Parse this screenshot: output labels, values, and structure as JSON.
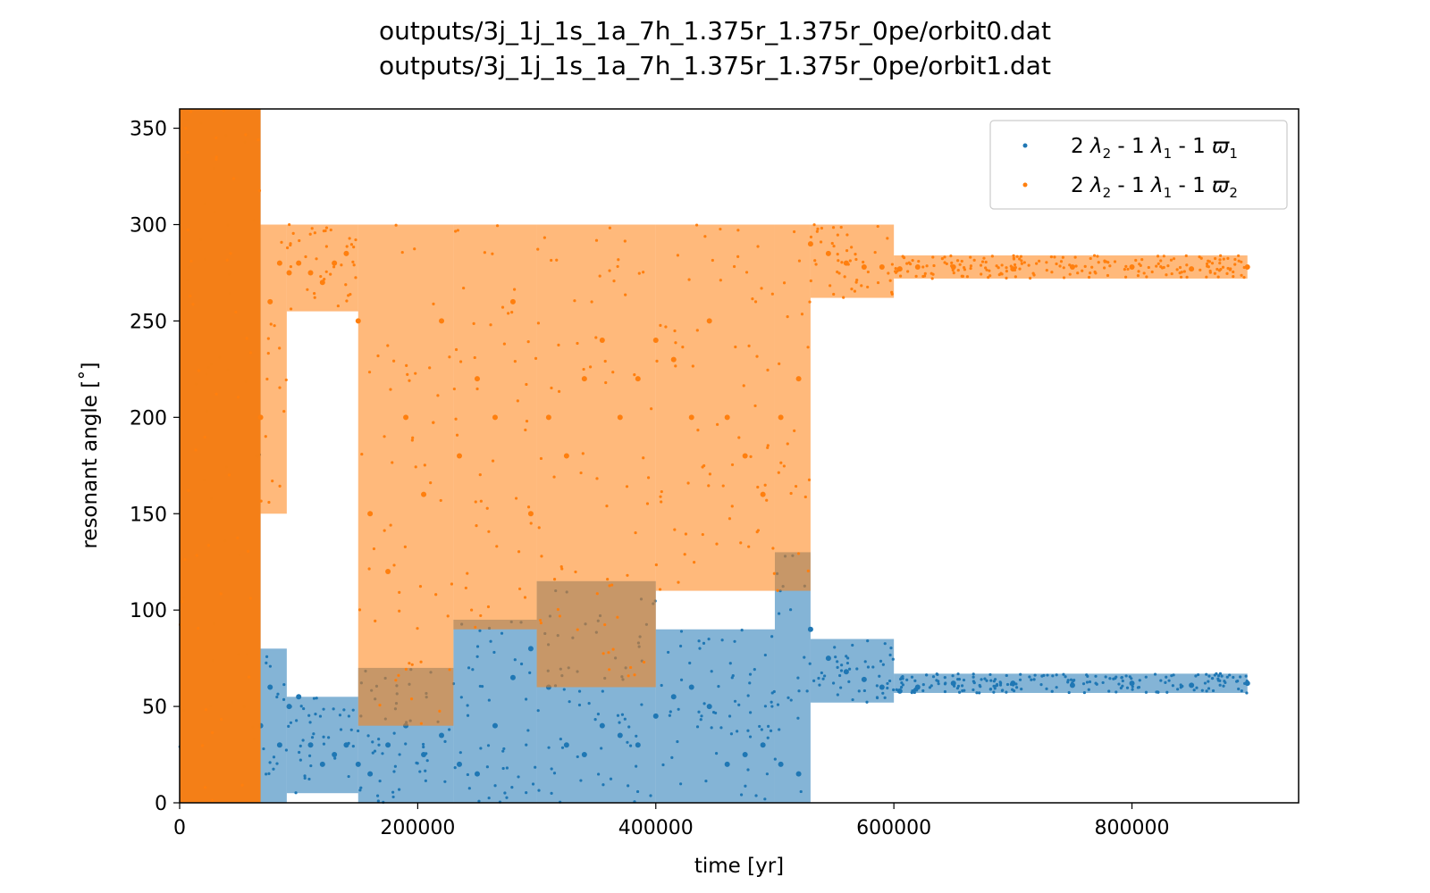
{
  "chart_data": {
    "type": "scatter",
    "title": [
      "outputs/3j_1j_1s_1a_7h_1.375r_1.375r_0pe/orbit0.dat",
      "outputs/3j_1j_1s_1a_7h_1.375r_1.375r_0pe/orbit1.dat"
    ],
    "xlabel": "time [yr]",
    "ylabel": "resonant angle [˚]",
    "xlim": [
      0,
      940000
    ],
    "ylim": [
      0,
      360
    ],
    "xticks": [
      0,
      200000,
      400000,
      600000,
      800000
    ],
    "yticks": [
      0,
      50,
      100,
      150,
      200,
      250,
      300,
      350
    ],
    "grid": false,
    "legend_position": "upper-right",
    "series": [
      {
        "name": "2 λ2 - 1 λ1 - 1 ϖ1",
        "name_parts": {
          "pre": "2 ",
          "s1": "λ",
          "sub1": "2",
          "mid1": " - 1 ",
          "s2": "λ",
          "sub2": "1",
          "mid2": " - 1 ",
          "s3": "ϖ",
          "sub3": "1"
        },
        "color": "#1f77b4",
        "bands": [
          {
            "x_start": 0,
            "x_end": 68000,
            "y_low": 0,
            "y_high": 360
          },
          {
            "x_start": 68000,
            "x_end": 90000,
            "y_low": 0,
            "y_high": 80
          },
          {
            "x_start": 90000,
            "x_end": 150000,
            "y_low": 5,
            "y_high": 55
          },
          {
            "x_start": 150000,
            "x_end": 230000,
            "y_low": 0,
            "y_high": 70
          },
          {
            "x_start": 230000,
            "x_end": 300000,
            "y_low": 0,
            "y_high": 95
          },
          {
            "x_start": 300000,
            "x_end": 400000,
            "y_low": 0,
            "y_high": 115
          },
          {
            "x_start": 400000,
            "x_end": 500000,
            "y_low": 0,
            "y_high": 90
          },
          {
            "x_start": 500000,
            "x_end": 530000,
            "y_low": 0,
            "y_high": 130
          },
          {
            "x_start": 530000,
            "x_end": 600000,
            "y_low": 52,
            "y_high": 85
          },
          {
            "x_start": 600000,
            "x_end": 897000,
            "y_low": 57,
            "y_high": 67
          }
        ],
        "x": [
          68000,
          76000,
          84000,
          92000,
          100000,
          110000,
          120000,
          130000,
          140000,
          150000,
          160000,
          175000,
          190000,
          205000,
          220000,
          235000,
          250000,
          265000,
          280000,
          295000,
          310000,
          325000,
          340000,
          355000,
          370000,
          385000,
          400000,
          415000,
          430000,
          445000,
          460000,
          475000,
          490000,
          505000,
          520000,
          530000,
          545000,
          560000,
          575000,
          590000,
          605000,
          620000,
          650000,
          700000,
          750000,
          800000,
          850000,
          897000
        ],
        "y": [
          40,
          60,
          30,
          50,
          55,
          30,
          20,
          25,
          30,
          20,
          15,
          30,
          40,
          25,
          35,
          20,
          15,
          40,
          65,
          80,
          60,
          30,
          25,
          40,
          35,
          30,
          45,
          55,
          60,
          50,
          20,
          25,
          30,
          20,
          15,
          90,
          75,
          68,
          64,
          60,
          58,
          60,
          62,
          62,
          61,
          62,
          61,
          62
        ]
      },
      {
        "name": "2 λ2 - 1 λ1 - 1 ϖ2",
        "name_parts": {
          "pre": "2 ",
          "s1": "λ",
          "sub1": "2",
          "mid1": " - 1 ",
          "s2": "λ",
          "sub2": "1",
          "mid2": " - 1 ",
          "s3": "ϖ",
          "sub3": "2"
        },
        "color": "#ff7f0e",
        "bands": [
          {
            "x_start": 0,
            "x_end": 68000,
            "y_low": 0,
            "y_high": 360
          },
          {
            "x_start": 68000,
            "x_end": 90000,
            "y_low": 150,
            "y_high": 300
          },
          {
            "x_start": 90000,
            "x_end": 150000,
            "y_low": 255,
            "y_high": 300
          },
          {
            "x_start": 150000,
            "x_end": 230000,
            "y_low": 40,
            "y_high": 300
          },
          {
            "x_start": 230000,
            "x_end": 300000,
            "y_low": 90,
            "y_high": 300
          },
          {
            "x_start": 300000,
            "x_end": 400000,
            "y_low": 60,
            "y_high": 300
          },
          {
            "x_start": 400000,
            "x_end": 500000,
            "y_low": 110,
            "y_high": 300
          },
          {
            "x_start": 500000,
            "x_end": 530000,
            "y_low": 110,
            "y_high": 300
          },
          {
            "x_start": 530000,
            "x_end": 600000,
            "y_low": 262,
            "y_high": 300
          },
          {
            "x_start": 600000,
            "x_end": 897000,
            "y_low": 272,
            "y_high": 284
          }
        ],
        "x": [
          68000,
          76000,
          84000,
          92000,
          100000,
          110000,
          120000,
          130000,
          140000,
          150000,
          160000,
          175000,
          190000,
          205000,
          220000,
          235000,
          250000,
          265000,
          280000,
          295000,
          310000,
          325000,
          340000,
          355000,
          370000,
          385000,
          400000,
          415000,
          430000,
          445000,
          460000,
          475000,
          490000,
          505000,
          520000,
          530000,
          545000,
          560000,
          575000,
          590000,
          605000,
          620000,
          650000,
          700000,
          750000,
          800000,
          850000,
          897000
        ],
        "y": [
          200,
          260,
          280,
          275,
          280,
          275,
          270,
          280,
          285,
          250,
          150,
          120,
          200,
          160,
          250,
          180,
          220,
          200,
          260,
          150,
          200,
          180,
          220,
          240,
          200,
          220,
          240,
          230,
          200,
          250,
          200,
          180,
          160,
          200,
          220,
          290,
          285,
          280,
          278,
          278,
          277,
          278,
          278,
          277,
          278,
          278,
          277,
          278
        ]
      }
    ]
  }
}
